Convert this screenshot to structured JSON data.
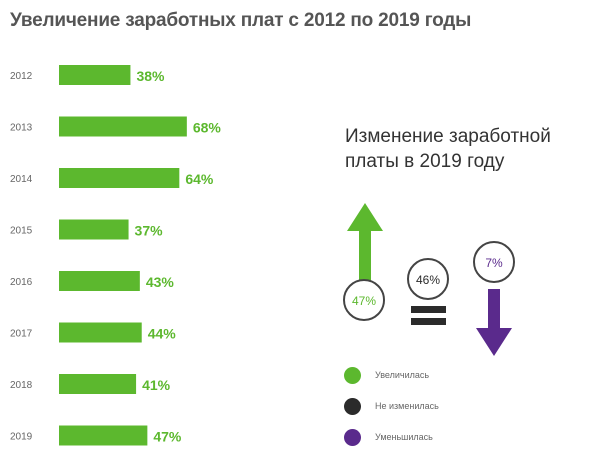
{
  "title": "Увеличение заработных плат с 2012 по 2019 годы",
  "subtitle": "Изменение заработной платы в 2019 году",
  "colors": {
    "increase": "#5cb82e",
    "unchanged": "#2b2b2b",
    "decrease": "#5a2a8c"
  },
  "chart_data": [
    {
      "type": "bar",
      "orientation": "horizontal",
      "title": "Увеличение заработных плат с 2012 по 2019 годы",
      "categories": [
        "2012",
        "2013",
        "2014",
        "2015",
        "2016",
        "2017",
        "2018",
        "2019"
      ],
      "values": [
        38,
        68,
        64,
        37,
        43,
        44,
        41,
        47
      ],
      "value_labels": [
        "38%",
        "68%",
        "64%",
        "37%",
        "43%",
        "44%",
        "41%",
        "47%"
      ],
      "unit": "%",
      "xlim": [
        0,
        70
      ],
      "grid": false,
      "color": "#5cb82e"
    },
    {
      "type": "infographic",
      "title": "Изменение заработной платы в 2019 году",
      "items": [
        {
          "label": "Увеличилась",
          "value": 47,
          "display": "47%",
          "color": "#5cb82e",
          "icon": "arrow-up-icon"
        },
        {
          "label": "Не изменилась",
          "value": 46,
          "display": "46%",
          "color": "#2b2b2b",
          "icon": "equals-icon"
        },
        {
          "label": "Уменьшилась",
          "value": 7,
          "display": "7%",
          "color": "#5a2a8c",
          "icon": "arrow-down-icon"
        }
      ]
    }
  ],
  "legend": [
    {
      "label": "Увеличилась",
      "color": "#5cb82e"
    },
    {
      "label": "Не изменилась",
      "color": "#2b2b2b"
    },
    {
      "label": "Уменьшилась",
      "color": "#5a2a8c"
    }
  ]
}
